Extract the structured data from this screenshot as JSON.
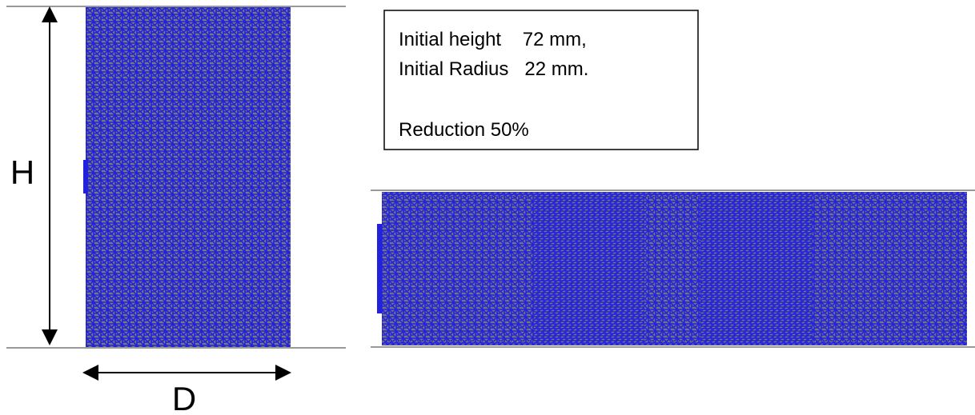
{
  "labels": {
    "height_symbol": "H",
    "diameter_symbol": "D"
  },
  "info_box": {
    "lines": [
      "Initial height    72 mm,",
      "Initial Radius   22 mm.",
      "Reduction 50%"
    ]
  }
}
